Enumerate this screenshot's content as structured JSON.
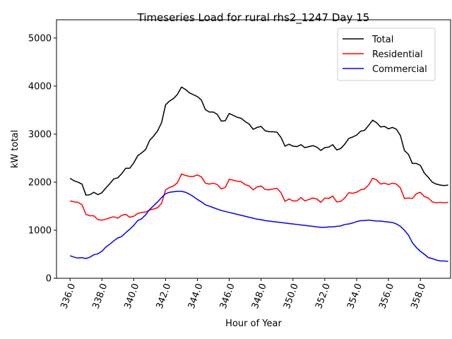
{
  "chart_data": {
    "type": "line",
    "title": "Timeseries Load for rural rhs2_1247  Day 15",
    "xlabel": "Hour of Year",
    "ylabel": "kW total",
    "xlim": [
      335.15,
      359.9
    ],
    "ylim": [
      0,
      5380
    ],
    "xticks": [
      336,
      338,
      340,
      342,
      344,
      346,
      348,
      350,
      352,
      354,
      356,
      358
    ],
    "xtick_labels": [
      "336.0",
      "338.0",
      "340.0",
      "342.0",
      "344.0",
      "346.0",
      "348.0",
      "350.0",
      "352.0",
      "354.0",
      "356.0",
      "358.0"
    ],
    "yticks": [
      0,
      1000,
      2000,
      3000,
      4000,
      5000
    ],
    "ytick_labels": [
      "0",
      "1000",
      "2000",
      "3000",
      "4000",
      "5000"
    ],
    "legend_position": "top-right",
    "x": [
      336.0,
      336.25,
      336.5,
      336.75,
      337.0,
      337.25,
      337.5,
      337.75,
      338.0,
      338.25,
      338.5,
      338.75,
      339.0,
      339.25,
      339.5,
      339.75,
      340.0,
      340.25,
      340.5,
      340.75,
      341.0,
      341.25,
      341.5,
      341.75,
      342.0,
      342.25,
      342.5,
      342.75,
      343.0,
      343.25,
      343.5,
      343.75,
      344.0,
      344.25,
      344.5,
      344.75,
      345.0,
      345.25,
      345.5,
      345.75,
      346.0,
      346.25,
      346.5,
      346.75,
      347.0,
      347.25,
      347.5,
      347.75,
      348.0,
      348.25,
      348.5,
      348.75,
      349.0,
      349.25,
      349.5,
      349.75,
      350.0,
      350.25,
      350.5,
      350.75,
      351.0,
      351.25,
      351.5,
      351.75,
      352.0,
      352.25,
      352.5,
      352.75,
      353.0,
      353.25,
      353.5,
      353.75,
      354.0,
      354.25,
      354.5,
      354.75,
      355.0,
      355.25,
      355.5,
      355.75,
      356.0,
      356.25,
      356.5,
      356.75,
      357.0,
      357.25,
      357.5,
      357.75,
      358.0,
      358.25,
      358.5,
      358.75,
      359.0,
      359.25,
      359.5,
      359.75
    ],
    "series": [
      {
        "name": "Total",
        "color": "#000000",
        "values": [
          2080,
          2030,
          2000,
          1960,
          1730,
          1740,
          1790,
          1740,
          1780,
          1880,
          1970,
          2070,
          2090,
          2180,
          2290,
          2290,
          2400,
          2550,
          2610,
          2680,
          2870,
          2960,
          3070,
          3240,
          3610,
          3690,
          3740,
          3830,
          3980,
          3930,
          3860,
          3820,
          3780,
          3710,
          3510,
          3460,
          3460,
          3410,
          3270,
          3280,
          3430,
          3390,
          3350,
          3330,
          3260,
          3210,
          3100,
          3140,
          3160,
          3070,
          3050,
          3050,
          3040,
          2930,
          2750,
          2790,
          2750,
          2740,
          2780,
          2720,
          2740,
          2760,
          2730,
          2660,
          2720,
          2730,
          2780,
          2670,
          2700,
          2790,
          2910,
          2940,
          2980,
          3060,
          3080,
          3180,
          3290,
          3240,
          3150,
          3160,
          3110,
          3140,
          3100,
          2970,
          2660,
          2580,
          2390,
          2390,
          2350,
          2190,
          2100,
          2000,
          1960,
          1940,
          1930,
          1940
        ]
      },
      {
        "name": "Residential",
        "color": "#ff0000",
        "values": [
          1610,
          1590,
          1580,
          1530,
          1330,
          1300,
          1300,
          1220,
          1210,
          1230,
          1260,
          1280,
          1250,
          1310,
          1330,
          1270,
          1290,
          1350,
          1370,
          1380,
          1420,
          1440,
          1470,
          1560,
          1840,
          1890,
          1920,
          1990,
          2170,
          2140,
          2120,
          2120,
          2150,
          2110,
          1980,
          1960,
          1980,
          1950,
          1860,
          1890,
          2060,
          2040,
          2020,
          2010,
          1950,
          1920,
          1840,
          1900,
          1920,
          1850,
          1840,
          1860,
          1870,
          1780,
          1600,
          1650,
          1610,
          1610,
          1680,
          1610,
          1640,
          1670,
          1650,
          1580,
          1670,
          1660,
          1710,
          1590,
          1600,
          1670,
          1780,
          1770,
          1790,
          1840,
          1860,
          1940,
          2080,
          2050,
          1960,
          1980,
          1950,
          1980,
          1960,
          1880,
          1660,
          1670,
          1660,
          1760,
          1790,
          1700,
          1670,
          1590,
          1570,
          1580,
          1570,
          1580
        ]
      },
      {
        "name": "Commercial",
        "color": "#0000ff",
        "values": [
          470,
          440,
          420,
          430,
          410,
          440,
          490,
          510,
          560,
          650,
          710,
          780,
          840,
          870,
          950,
          1020,
          1100,
          1200,
          1240,
          1320,
          1430,
          1510,
          1590,
          1680,
          1760,
          1790,
          1800,
          1810,
          1810,
          1790,
          1750,
          1700,
          1640,
          1590,
          1530,
          1500,
          1470,
          1440,
          1410,
          1390,
          1370,
          1350,
          1330,
          1310,
          1290,
          1270,
          1250,
          1230,
          1220,
          1200,
          1190,
          1180,
          1170,
          1160,
          1150,
          1140,
          1130,
          1120,
          1110,
          1100,
          1090,
          1080,
          1070,
          1060,
          1060,
          1070,
          1070,
          1080,
          1090,
          1120,
          1130,
          1150,
          1180,
          1200,
          1200,
          1210,
          1200,
          1190,
          1190,
          1180,
          1170,
          1160,
          1130,
          1080,
          1000,
          900,
          740,
          640,
          560,
          500,
          430,
          410,
          380,
          360,
          360,
          350
        ]
      }
    ]
  }
}
